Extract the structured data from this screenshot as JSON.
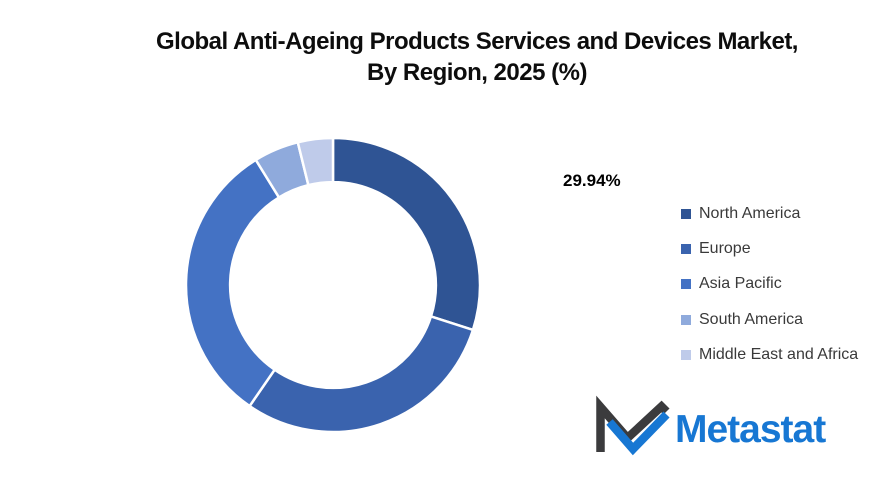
{
  "title": {
    "line1": "Global Anti-Ageing Products Services and Devices Market,",
    "line2": "By Region, 2025 (%)"
  },
  "data_label": {
    "text": "29.94%"
  },
  "chart_data": {
    "type": "pie",
    "subtype": "donut",
    "title": "Global Anti-Ageing Products Services and Devices Market, By Region, 2025 (%)",
    "categories": [
      "North America",
      "Europe",
      "Asia Pacific",
      "South America",
      "Middle East and Africa"
    ],
    "values": [
      29.94,
      29.66,
      31.6,
      4.95,
      3.85
    ],
    "unit": "%",
    "colors": [
      "#2F5494",
      "#3A63AE",
      "#4472C4",
      "#8FAADC",
      "#BFCBEA"
    ],
    "start_angle_deg": 0,
    "direction": "clockwise",
    "hole_ratio": 0.7,
    "slice_separator_color": "#FFFFFF",
    "legend_position": "right",
    "shown_data_labels": [
      {
        "category": "North America",
        "text": "29.94%"
      }
    ]
  },
  "legend": {
    "items": [
      "North America",
      "Europe",
      "Asia Pacific",
      "South America",
      "Middle East and Africa"
    ]
  },
  "logo": {
    "text": "Metastat",
    "text_color": "#1777D3",
    "mark_dark_color": "#3B3B3D",
    "mark_blue_color": "#1777D3"
  }
}
